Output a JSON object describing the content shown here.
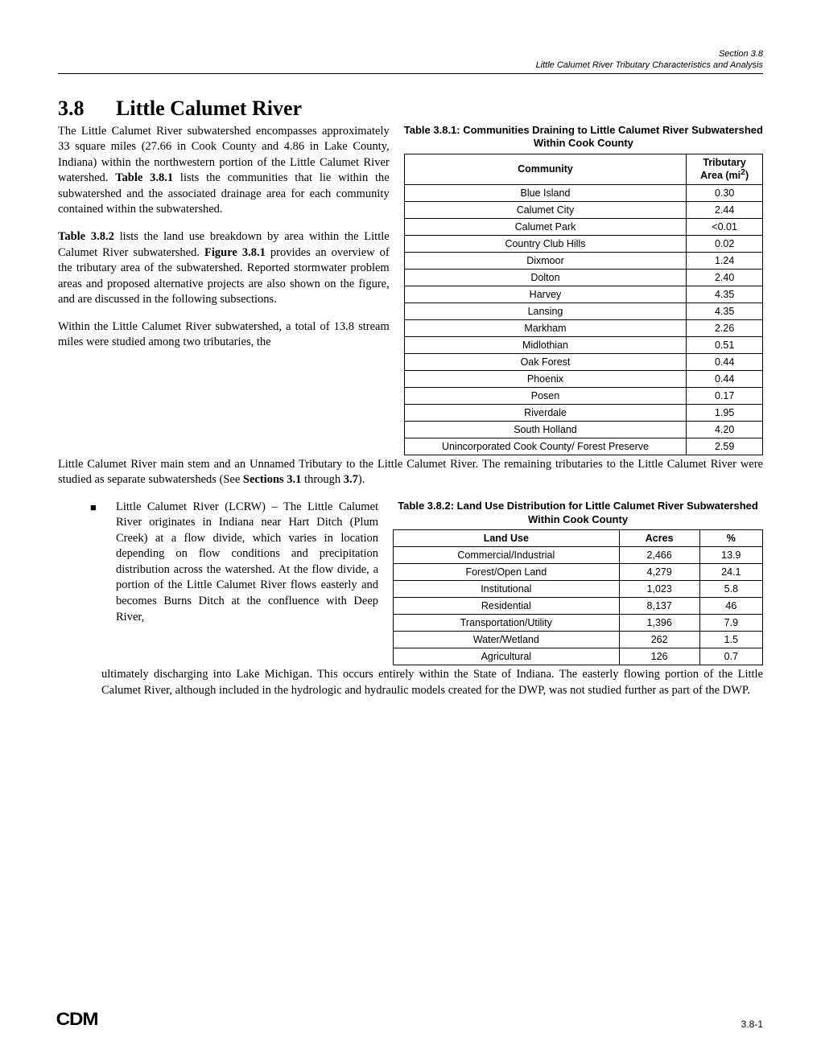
{
  "header": {
    "line1": "Section 3.8",
    "line2": "Little Calumet River Tributary Characteristics and Analysis"
  },
  "title": {
    "num": "3.8",
    "text": "Little Calumet River"
  },
  "para1": "The Little Calumet River subwatershed encompasses approximately 33 square miles (27.66 in Cook County and 4.86 in Lake County, Indiana) within the northwestern portion of the Little Calumet River watershed. Table 3.8.1 lists the communities that lie within the subwatershed and the associated drainage area for each community contained within the subwatershed.",
  "para2": "Table 3.8.2 lists the land use breakdown by area within the Little Calumet River subwatershed. Figure 3.8.1 provides an overview of the tributary area of the subwatershed. Reported stormwater problem areas and proposed alternative projects are also shown on the figure, and are discussed in the following subsections.",
  "para3": "Within the Little Calumet River subwatershed, a total of 13.8 stream miles were studied among two tributaries, the",
  "para3b": "Little Calumet River main stem and an Unnamed Tributary to the Little Calumet River. The remaining tributaries to the Little Calumet River were studied as separate subwatersheds (See Sections 3.1 through 3.7).",
  "table1": {
    "caption": "Table 3.8.1:  Communities Draining to Little Calumet River Subwatershed Within Cook County",
    "head": [
      "Community",
      "Tributary Area (mi²)"
    ],
    "rows": [
      [
        "Blue Island",
        "0.30"
      ],
      [
        "Calumet City",
        "2.44"
      ],
      [
        "Calumet Park",
        "<0.01"
      ],
      [
        "Country Club Hills",
        "0.02"
      ],
      [
        "Dixmoor",
        "1.24"
      ],
      [
        "Dolton",
        "2.40"
      ],
      [
        "Harvey",
        "4.35"
      ],
      [
        "Lansing",
        "4.35"
      ],
      [
        "Markham",
        "2.26"
      ],
      [
        "Midlothian",
        "0.51"
      ],
      [
        "Oak Forest",
        "0.44"
      ],
      [
        "Phoenix",
        "0.44"
      ],
      [
        "Posen",
        "0.17"
      ],
      [
        "Riverdale",
        "1.95"
      ],
      [
        "South Holland",
        "4.20"
      ],
      [
        "Unincorporated Cook County/ Forest Preserve",
        "2.59"
      ]
    ]
  },
  "bullet": {
    "left": "Little Calumet River (LCRW) – The Little Calumet River originates in Indiana near Hart Ditch (Plum Creek) at a flow divide, which varies in location depending on flow conditions and precipitation distribution across the watershed.  At the flow divide, a portion of the Little Calumet River flows easterly and becomes Burns Ditch at the confluence with Deep River,",
    "cont": "ultimately discharging into Lake Michigan.  This occurs entirely within the State of Indiana. The easterly flowing portion of the Little Calumet River, although included in the hydrologic and hydraulic models created for the DWP, was not studied further as part of the DWP."
  },
  "table2": {
    "caption": "Table 3.8.2:   Land Use Distribution for Little Calumet River Subwatershed Within Cook County",
    "head": [
      "Land Use",
      "Acres",
      "%"
    ],
    "rows": [
      [
        "Commercial/Industrial",
        "2,466",
        "13.9"
      ],
      [
        "Forest/Open Land",
        "4,279",
        "24.1"
      ],
      [
        "Institutional",
        "1,023",
        "5.8"
      ],
      [
        "Residential",
        "8,137",
        "46"
      ],
      [
        "Transportation/Utility",
        "1,396",
        "7.9"
      ],
      [
        "Water/Wetland",
        "262",
        "1.5"
      ],
      [
        "Agricultural",
        "126",
        "0.7"
      ]
    ]
  },
  "footer": {
    "logo": "CDM",
    "page": "3.8-1"
  }
}
